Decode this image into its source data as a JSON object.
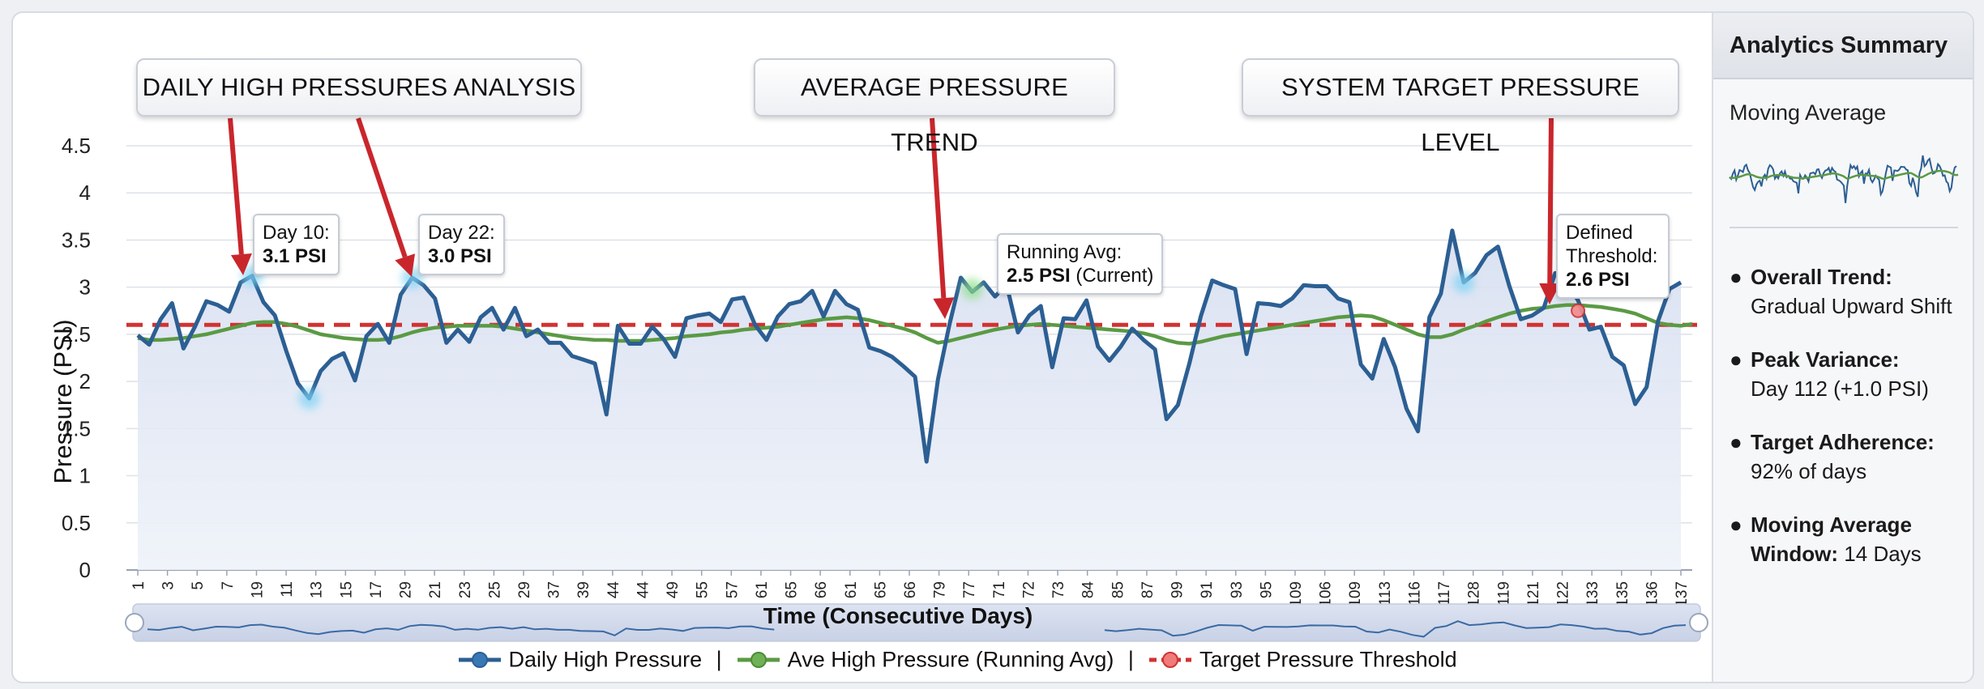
{
  "chart_data": {
    "type": "line",
    "title": "",
    "xlabel": "Time (Consecutive Days)",
    "ylabel": "Pressure (PSI)",
    "ylim": [
      0,
      4.5
    ],
    "yticks": [
      "0",
      "0.5",
      "1",
      "1.5",
      "2",
      "2.5",
      "3",
      "3.5",
      "4",
      "4.5"
    ],
    "xtick_labels": [
      "1",
      "1",
      "3",
      "3",
      "5",
      "5",
      "7",
      "7",
      "19",
      "19",
      "11",
      "11",
      "13",
      "13",
      "15",
      "15",
      "17",
      "17",
      "29",
      "29",
      "21",
      "21",
      "23",
      "23",
      "25",
      "25",
      "29",
      "29",
      "37",
      "37",
      "39",
      "39",
      "44",
      "44",
      "44",
      "44",
      "49",
      "49",
      "55",
      "55",
      "57",
      "57",
      "61",
      "61",
      "65",
      "65",
      "66",
      "66",
      "61",
      "61",
      "65",
      "65",
      "66",
      "66",
      "79",
      "79",
      "77",
      "77",
      "71",
      "71",
      "72",
      "72",
      "73",
      "73",
      "84",
      "84",
      "85",
      "85",
      "87",
      "87",
      "99",
      "99",
      "91",
      "91",
      "93",
      "93",
      "95",
      "95",
      "109",
      "109",
      "106",
      "106",
      "109",
      "109",
      "113",
      "113",
      "116",
      "116",
      "117",
      "117",
      "128",
      "128",
      "119",
      "119",
      "121",
      "121",
      "122",
      "122",
      "133",
      "133",
      "135",
      "135",
      "136",
      "136",
      "137"
    ],
    "grid": true,
    "legend_position": "bottom",
    "series": [
      {
        "name": "Daily High Pressure",
        "color": "#2c5f93",
        "values": [
          2.49,
          2.39,
          2.66,
          2.83,
          2.35,
          2.58,
          2.85,
          2.81,
          2.74,
          3.05,
          3.12,
          2.84,
          2.7,
          2.32,
          1.98,
          1.82,
          2.11,
          2.24,
          2.3,
          2.01,
          2.48,
          2.61,
          2.41,
          2.92,
          3.1,
          3.02,
          2.88,
          2.41,
          2.55,
          2.42,
          2.68,
          2.78,
          2.55,
          2.78,
          2.48,
          2.55,
          2.41,
          2.41,
          2.27,
          2.23,
          2.19,
          1.65,
          2.59,
          2.4,
          2.4,
          2.58,
          2.45,
          2.26,
          2.67,
          2.7,
          2.72,
          2.63,
          2.87,
          2.89,
          2.6,
          2.44,
          2.69,
          2.82,
          2.85,
          2.96,
          2.69,
          2.96,
          2.82,
          2.76,
          2.36,
          2.32,
          2.26,
          2.16,
          2.05,
          1.15,
          2.02,
          2.6,
          3.1,
          2.95,
          3.05,
          2.9,
          3.03,
          2.52,
          2.7,
          2.8,
          2.15,
          2.67,
          2.66,
          2.86,
          2.37,
          2.22,
          2.37,
          2.56,
          2.44,
          2.34,
          1.6,
          1.75,
          2.19,
          2.69,
          3.07,
          3.02,
          2.98,
          2.29,
          2.83,
          2.82,
          2.8,
          2.88,
          3.02,
          3.01,
          3.01,
          2.88,
          2.84,
          2.18,
          2.03,
          2.45,
          2.15,
          1.71,
          1.47,
          2.68,
          2.93,
          3.6,
          3.05,
          3.15,
          3.34,
          3.43,
          3.01,
          2.66,
          2.7,
          2.78,
          3.15,
          3.05,
          2.86,
          2.55,
          2.58,
          2.26,
          2.17,
          1.76,
          1.94,
          2.64,
          2.98,
          3.05
        ]
      },
      {
        "name": "Ave High Pressure (Running Avg)",
        "color": "#5a9a44",
        "values": [
          2.46,
          2.44,
          2.44,
          2.45,
          2.46,
          2.48,
          2.5,
          2.53,
          2.56,
          2.59,
          2.62,
          2.63,
          2.63,
          2.61,
          2.58,
          2.54,
          2.5,
          2.48,
          2.46,
          2.45,
          2.44,
          2.44,
          2.45,
          2.48,
          2.52,
          2.55,
          2.57,
          2.58,
          2.59,
          2.59,
          2.59,
          2.59,
          2.58,
          2.56,
          2.54,
          2.52,
          2.5,
          2.48,
          2.46,
          2.45,
          2.44,
          2.44,
          2.43,
          2.43,
          2.43,
          2.44,
          2.45,
          2.46,
          2.48,
          2.49,
          2.5,
          2.52,
          2.53,
          2.55,
          2.56,
          2.57,
          2.58,
          2.6,
          2.62,
          2.64,
          2.66,
          2.67,
          2.68,
          2.67,
          2.65,
          2.62,
          2.59,
          2.56,
          2.52,
          2.46,
          2.41,
          2.43,
          2.46,
          2.49,
          2.52,
          2.55,
          2.57,
          2.59,
          2.6,
          2.61,
          2.6,
          2.59,
          2.58,
          2.57,
          2.56,
          2.55,
          2.54,
          2.53,
          2.51,
          2.48,
          2.44,
          2.41,
          2.4,
          2.42,
          2.45,
          2.48,
          2.5,
          2.52,
          2.54,
          2.56,
          2.58,
          2.6,
          2.62,
          2.64,
          2.66,
          2.68,
          2.69,
          2.7,
          2.69,
          2.65,
          2.6,
          2.55,
          2.5,
          2.47,
          2.47,
          2.5,
          2.55,
          2.59,
          2.64,
          2.68,
          2.72,
          2.75,
          2.77,
          2.78,
          2.8,
          2.81,
          2.81,
          2.8,
          2.79,
          2.77,
          2.75,
          2.72,
          2.67,
          2.62,
          2.6,
          2.59,
          2.61
        ]
      },
      {
        "name": "Target Pressure Threshold",
        "color": "#d23232",
        "value": 2.6
      }
    ],
    "annotations": [
      {
        "point_index": 10,
        "day_label": "Day 10:",
        "value_label": "3.1 PSI"
      },
      {
        "point_index": 24,
        "day_label": "Day 22:",
        "value_label": "3.0 PSI"
      },
      {
        "point_index": 73,
        "label": "Running Avg:",
        "value_label": "2.5 PSI",
        "suffix": "(Current)"
      },
      {
        "label": "Defined Threshold:",
        "value_label": "2.6 PSI"
      }
    ]
  },
  "callouts": {
    "daily_high": "DAILY HIGH PRESSURES ANALYSIS",
    "average_trend": "AVERAGE PRESSURE TREND",
    "target_level": "SYSTEM TARGET PRESSURE LEVEL"
  },
  "notes": {
    "day10_label": "Day 10:",
    "day10_value": "3.1 PSI",
    "day22_label": "Day 22:",
    "day22_value": "3.0 PSI",
    "running_label": "Running Avg:",
    "running_value": "2.5 PSI",
    "running_suffix": "(Current)",
    "threshold_label": "Defined Threshold:",
    "threshold_value": "2.6 PSI"
  },
  "legend": {
    "daily": "Daily High Pressure",
    "average": "Ave High Pressure (Running Avg)",
    "target": "Target Pressure Threshold",
    "separator": "|"
  },
  "sidebar": {
    "title": "Analytics Summary",
    "moving_average_label": "Moving Average",
    "items": [
      {
        "key": "Overall Trend:",
        "value": "Gradual Upward Shift"
      },
      {
        "key": "Peak Variance:",
        "value": "Day 112 (+1.0 PSI)"
      },
      {
        "key": "Target Adherence:",
        "value": "92% of days"
      },
      {
        "key": "Moving Average",
        "key2": "Window:",
        "value": "14 Days"
      }
    ]
  },
  "colors": {
    "daily": "#2c5f93",
    "average": "#5a9a44",
    "target": "#d23232",
    "area_fill": "#dfe6f2",
    "callout_arrow": "#c9262c",
    "highlight_glow": "#7fd3f5"
  }
}
